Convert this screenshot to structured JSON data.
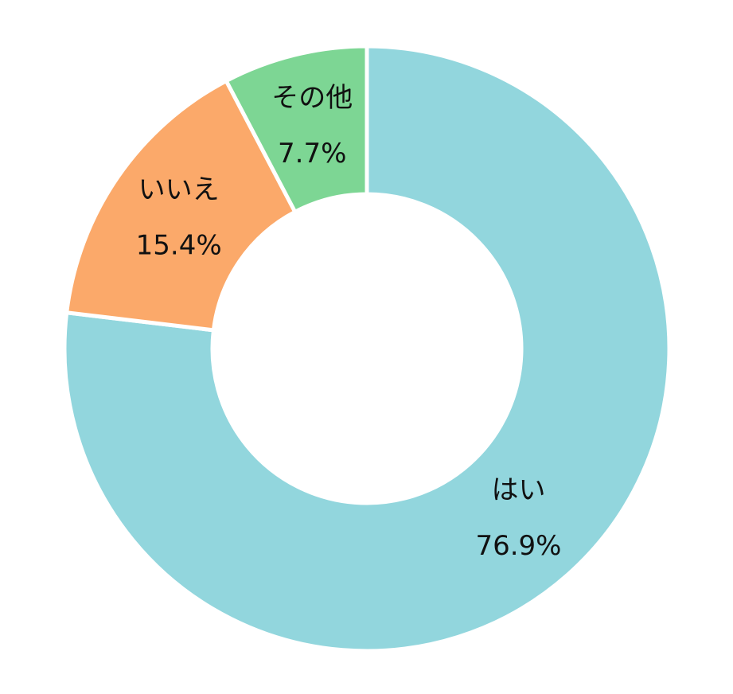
{
  "chart_data": {
    "type": "donut",
    "categories": [
      "はい",
      "いいえ",
      "その他"
    ],
    "values": [
      76.9,
      15.4,
      7.7
    ],
    "value_labels": [
      "76.9%",
      "15.4%",
      "7.7%"
    ],
    "colors": [
      "#92d6dd",
      "#fba96a",
      "#7dd694"
    ]
  }
}
